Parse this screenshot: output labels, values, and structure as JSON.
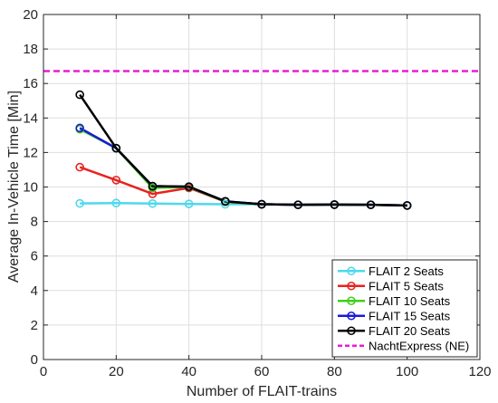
{
  "chart_data": {
    "type": "line",
    "xlabel": "Number of FLAIT-trains",
    "ylabel": "Average In-Vehicle Time [Min]",
    "xlim": [
      0,
      120
    ],
    "ylim": [
      0,
      20
    ],
    "xticks": [
      0,
      20,
      40,
      60,
      80,
      100,
      120
    ],
    "yticks": [
      0,
      2,
      4,
      6,
      8,
      10,
      12,
      14,
      16,
      18,
      20
    ],
    "grid": true,
    "legend_position": "bottom-right",
    "series": [
      {
        "name": "FLAIT 2 Seats",
        "color": "#4dd9ec",
        "marker": "circle",
        "x": [
          10,
          20,
          30,
          40,
          50,
          60,
          70,
          80,
          90,
          100
        ],
        "y": [
          9.05,
          9.07,
          9.04,
          9.02,
          9.0,
          9.0,
          8.97,
          8.98,
          8.97,
          8.93
        ]
      },
      {
        "name": "FLAIT 5 Seats",
        "color": "#e8231f",
        "marker": "circle",
        "x": [
          10,
          20,
          30,
          40,
          50,
          60,
          70,
          80,
          90,
          100
        ],
        "y": [
          11.15,
          10.4,
          9.6,
          9.95,
          9.15,
          9.0,
          8.97,
          8.98,
          8.97,
          8.93
        ]
      },
      {
        "name": "FLAIT 10 Seats",
        "color": "#3fcf1a",
        "marker": "circle",
        "x": [
          10,
          20,
          30,
          40,
          50,
          60,
          70,
          80,
          90,
          100
        ],
        "y": [
          13.35,
          12.25,
          9.95,
          10.0,
          9.15,
          9.0,
          8.97,
          8.98,
          8.97,
          8.93
        ]
      },
      {
        "name": "FLAIT 15 Seats",
        "color": "#1a1ad6",
        "marker": "circle",
        "x": [
          10,
          20,
          30,
          40,
          50,
          60,
          70,
          80,
          90,
          100
        ],
        "y": [
          13.42,
          12.25,
          10.05,
          10.02,
          9.17,
          9.0,
          8.97,
          8.98,
          8.97,
          8.93
        ]
      },
      {
        "name": "FLAIT 20 Seats",
        "color": "#000000",
        "marker": "circle",
        "x": [
          10,
          20,
          30,
          40,
          50,
          60,
          70,
          80,
          90,
          100
        ],
        "y": [
          15.35,
          12.25,
          10.05,
          10.02,
          9.17,
          9.0,
          8.97,
          8.98,
          8.97,
          8.93
        ]
      }
    ],
    "reference_lines": [
      {
        "name": "NachtExpress (NE)",
        "color": "#e81cd6",
        "style": "dashed",
        "y": 16.72
      }
    ]
  }
}
